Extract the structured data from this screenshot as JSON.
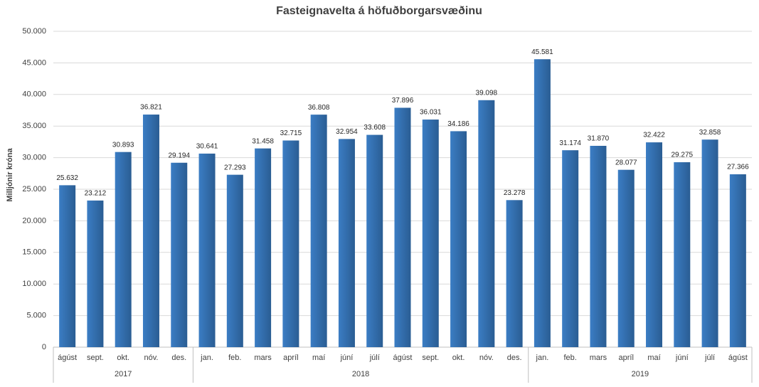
{
  "chart_data": {
    "type": "bar",
    "title": "Fasteignavelta á höfuðborgarsvæðinu",
    "y_label": "Milljónir króna",
    "categories": [
      "ágúst",
      "sept.",
      "okt.",
      "nóv.",
      "des.",
      "jan.",
      "feb.",
      "mars",
      "apríl",
      "maí",
      "júní",
      "júlí",
      "ágúst",
      "sept.",
      "okt.",
      "nóv.",
      "des.",
      "jan.",
      "feb.",
      "mars",
      "apríl",
      "maí",
      "júní",
      "júlí",
      "ágúst"
    ],
    "groups": [
      {
        "label": "2017",
        "span": 5
      },
      {
        "label": "2018",
        "span": 12
      },
      {
        "label": "2019",
        "span": 8
      }
    ],
    "values": [
      25632,
      23212,
      30893,
      36821,
      29194,
      30641,
      27293,
      31458,
      32715,
      36808,
      32954,
      33608,
      37896,
      36031,
      34186,
      39098,
      23278,
      45581,
      31174,
      31870,
      28077,
      32422,
      29275,
      32858,
      27366
    ],
    "value_labels": [
      "25.632",
      "23.212",
      "30.893",
      "36.821",
      "29.194",
      "30.641",
      "27.293",
      "31.458",
      "32.715",
      "36.808",
      "32.954",
      "33.608",
      "37.896",
      "36.031",
      "34.186",
      "39.098",
      "23.278",
      "45.581",
      "31.174",
      "31.870",
      "28.077",
      "32.422",
      "29.275",
      "32.858",
      "27.366"
    ],
    "color": "#3b7dc4",
    "ylim": [
      0,
      50000
    ],
    "yticks": [
      0,
      {
        "value": 5000,
        "label": "5.000"
      },
      {
        "value": 10000,
        "label": "10.000"
      },
      {
        "value": 15000,
        "label": "15.000"
      },
      {
        "value": 20000,
        "label": "20.000"
      },
      {
        "value": 25000,
        "label": "25.000"
      },
      {
        "value": 30000,
        "label": "30.000"
      },
      {
        "value": 35000,
        "label": "35.000"
      },
      {
        "value": 40000,
        "label": "40.000"
      },
      {
        "value": 45000,
        "label": "45.000"
      },
      {
        "value": 50000,
        "label": "50.000"
      }
    ],
    "grid": true
  }
}
